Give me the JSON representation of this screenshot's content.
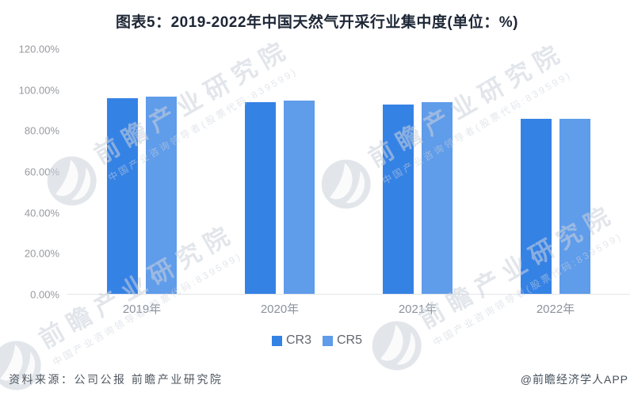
{
  "title": "图表5：2019-2022年中国天然气开采行业集中度(单位：%)",
  "chart_data": {
    "type": "bar",
    "categories": [
      "2019年",
      "2020年",
      "2021年",
      "2022年"
    ],
    "series": [
      {
        "name": "CR3",
        "color": "#3582e5",
        "values": [
          96.0,
          94.1,
          92.9,
          85.7
        ]
      },
      {
        "name": "CR5",
        "color": "#5f9cea",
        "values": [
          96.8,
          94.8,
          93.9,
          85.9
        ]
      }
    ],
    "unit": "%",
    "ylim": [
      0,
      120
    ],
    "yticks": [
      "120.00%",
      "100.00%",
      "80.00%",
      "60.00%",
      "40.00%",
      "20.00%",
      "0.00%"
    ],
    "grid": false,
    "legend_position": "bottom-center"
  },
  "watermark": {
    "text": "前瞻产业研究院",
    "subtext": "中国产业咨询领导者(股票代码:839599)"
  },
  "footer": {
    "source": "资料来源：公司公报 前瞻产业研究院",
    "credit": "@前瞻经济学人APP"
  }
}
